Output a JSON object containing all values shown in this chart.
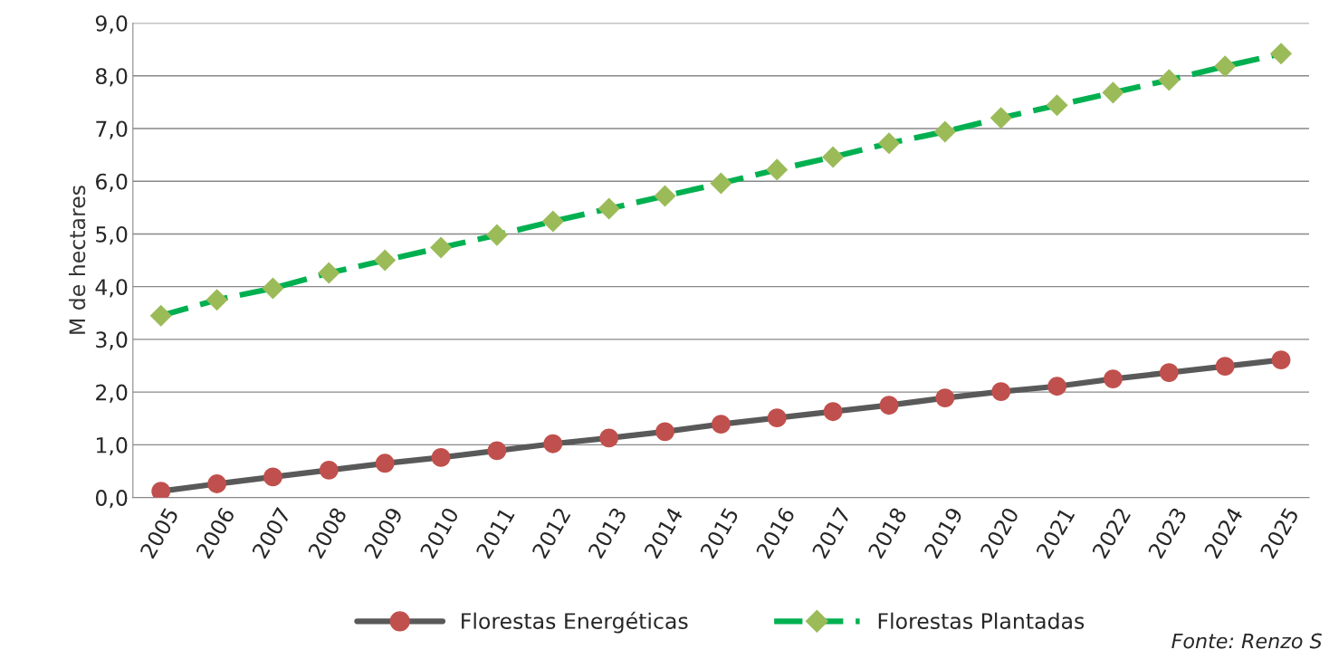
{
  "chart_data": {
    "type": "line",
    "ylabel": "M de hectares",
    "categories": [
      "2005",
      "2006",
      "2007",
      "2008",
      "2009",
      "2010",
      "2011",
      "2012",
      "2013",
      "2014",
      "2015",
      "2016",
      "2017",
      "2018",
      "2019",
      "2020",
      "2021",
      "2022",
      "2023",
      "2024",
      "2025"
    ],
    "series": [
      {
        "name": "Florestas Energéticas",
        "color": "#595959",
        "colors": [
          "#c0504d",
          "#c0504d",
          "#c0504d",
          "#c0504d",
          "#c0504d",
          "#c0504d",
          "#c0504d",
          "#c0504d",
          "#c0504d",
          "#c0504d",
          "#c0504d",
          "#c0504d",
          "#c0504d",
          "#c0504d",
          "#c0504d",
          "#c0504d",
          "#c0504d",
          "#c0504d",
          "#c0504d",
          "#c0504d",
          "#c0504d"
        ],
        "marker": "circle",
        "line_style": "solid",
        "values": [
          0.12,
          0.26,
          0.39,
          0.52,
          0.65,
          0.76,
          0.89,
          1.02,
          1.13,
          1.25,
          1.39,
          1.51,
          1.63,
          1.75,
          1.89,
          2.01,
          2.11,
          2.25,
          2.37,
          2.49,
          2.61
        ]
      },
      {
        "name": "Florestas Plantadas",
        "color": "#00b050",
        "colors": [
          "#9bbb59",
          "#9bbb59",
          "#9bbb59",
          "#9bbb59",
          "#9bbb59",
          "#9bbb59",
          "#9bbb59",
          "#9bbb59",
          "#9bbb59",
          "#9bbb59",
          "#9bbb59",
          "#9bbb59",
          "#9bbb59",
          "#9bbb59",
          "#9bbb59",
          "#9bbb59",
          "#9bbb59",
          "#9bbb59",
          "#9bbb59",
          "#9bbb59",
          "#9bbb59"
        ],
        "marker": "diamond",
        "line_style": "dashed",
        "values": [
          3.45,
          3.75,
          3.97,
          4.26,
          4.5,
          4.74,
          4.98,
          5.24,
          5.48,
          5.72,
          5.96,
          6.22,
          6.46,
          6.72,
          6.94,
          7.2,
          7.44,
          7.68,
          7.92,
          8.18,
          8.42
        ]
      }
    ],
    "ylim": [
      0,
      9
    ],
    "yticks": [
      {
        "value": 0,
        "label": "0,0"
      },
      {
        "value": 1,
        "label": "1,0"
      },
      {
        "value": 2,
        "label": "2,0"
      },
      {
        "value": 3,
        "label": "3,0"
      },
      {
        "value": 4,
        "label": "4,0"
      },
      {
        "value": 5,
        "label": "5,0"
      },
      {
        "value": 6,
        "label": "6,0"
      },
      {
        "value": 7,
        "label": "7,0"
      },
      {
        "value": 8,
        "label": "8,0"
      },
      {
        "value": 9,
        "label": "9,0"
      }
    ],
    "grid": "y",
    "legend": "bottom",
    "annotations": [
      "Fonte: Renzo S"
    ]
  }
}
